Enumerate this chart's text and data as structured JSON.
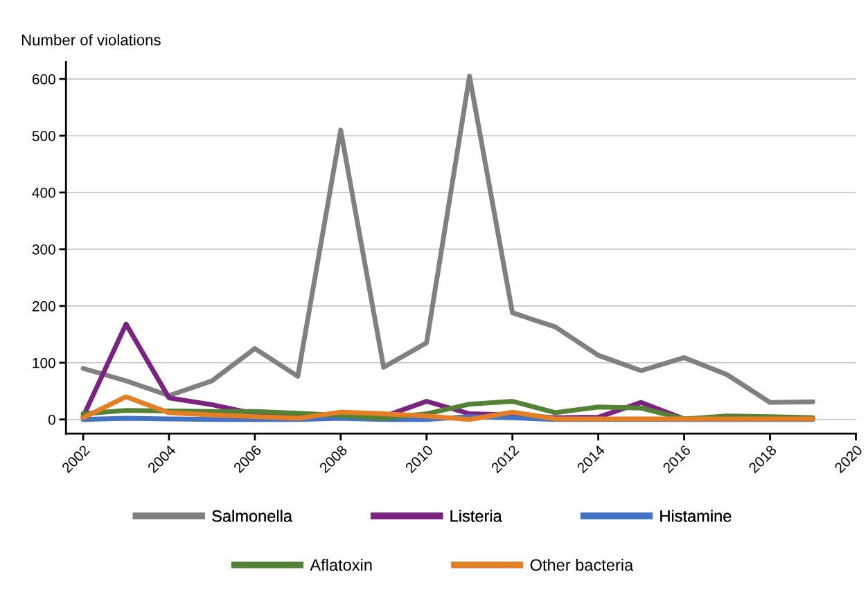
{
  "chart_data": {
    "type": "line",
    "ylabel": "Number of violations",
    "x": [
      2002,
      2003,
      2004,
      2005,
      2006,
      2007,
      2008,
      2009,
      2010,
      2011,
      2012,
      2013,
      2014,
      2015,
      2016,
      2017,
      2018,
      2019
    ],
    "series": [
      {
        "name": "Salmonella",
        "color": "#808080",
        "values": [
          90,
          68,
          42,
          68,
          125,
          76,
          510,
          92,
          135,
          605,
          188,
          163,
          113,
          86,
          109,
          79,
          30,
          31
        ]
      },
      {
        "name": "Listeria",
        "color": "#7b2380",
        "values": [
          5,
          168,
          38,
          26,
          10,
          6,
          8,
          5,
          32,
          10,
          8,
          3,
          4,
          30,
          1,
          1,
          null,
          null
        ]
      },
      {
        "name": "Histamine",
        "color": "#4472c4",
        "values": [
          0,
          2,
          1,
          0,
          0,
          0,
          2,
          0,
          0,
          5,
          3,
          0,
          0,
          0,
          0,
          0,
          0,
          0
        ]
      },
      {
        "name": "Aflatoxin",
        "color": "#548235",
        "values": [
          10,
          16,
          15,
          14,
          14,
          11,
          7,
          2,
          10,
          27,
          32,
          12,
          22,
          20,
          1,
          6,
          5,
          3
        ]
      },
      {
        "name": "Other bacteria",
        "color": "#e57f25",
        "values": [
          3,
          40,
          12,
          8,
          5,
          2,
          13,
          10,
          6,
          0,
          13,
          1,
          1,
          1,
          1,
          1,
          1,
          1
        ]
      }
    ],
    "xlim": [
      2001.6,
      2020
    ],
    "xticks": [
      2002,
      2004,
      2006,
      2008,
      2010,
      2012,
      2014,
      2016,
      2018,
      2020
    ],
    "ylim": [
      -25,
      630
    ],
    "yticks": [
      0,
      100,
      200,
      300,
      400,
      500,
      600
    ],
    "grid": "y",
    "legend": "bottom",
    "marker": "none",
    "line_style": "solid"
  }
}
